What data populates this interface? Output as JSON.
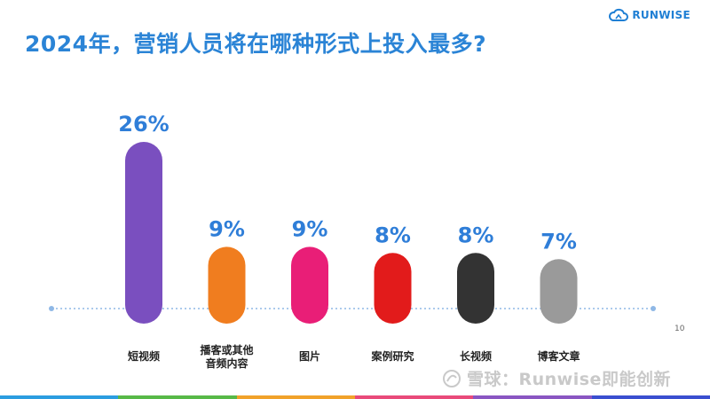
{
  "header": {
    "title": "2024年，营销人员将在哪种形式上投入最多?",
    "logo_text": "RUNWISE",
    "logo_icon": "cloud-icon"
  },
  "page_number": "10",
  "watermark": "雪球：Runwise即能创新",
  "colors": {
    "title": "#2b84d6",
    "label_value": "#2f7ed8",
    "axis": "#8fb8e6",
    "bottom_bar": [
      "#2b9de0",
      "#57b947",
      "#f1a22a",
      "#e94a7a",
      "#8a56c2",
      "#3a4fd0"
    ]
  },
  "chart_data": {
    "type": "bar",
    "title": "2024年，营销人员将在哪种形式上投入最多?",
    "categories": [
      "短视频",
      "播客或其他\n音频内容",
      "图片",
      "案例研究",
      "长视频",
      "博客文章"
    ],
    "values": [
      26,
      9,
      9,
      8,
      8,
      7
    ],
    "value_labels": [
      "26%",
      "9%",
      "9%",
      "8%",
      "8%",
      "7%"
    ],
    "bar_colors": [
      "#7a4fbf",
      "#f07d1f",
      "#e91e77",
      "#e21b1b",
      "#333333",
      "#9a9a9a"
    ],
    "unit": "%",
    "xlabel": "",
    "ylabel": "",
    "grid": false,
    "legend": "none"
  }
}
